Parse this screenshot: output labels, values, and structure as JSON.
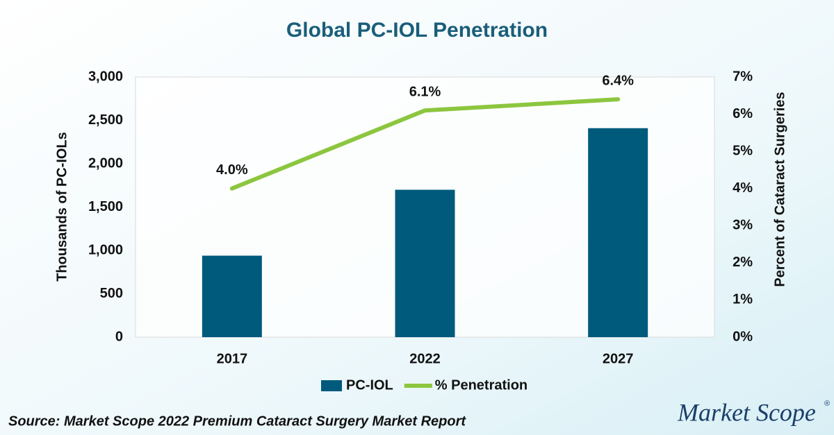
{
  "chart_data": {
    "type": "bar",
    "title": "Global PC-IOL Penetration",
    "y_label": "Thousands of PC-IOLs",
    "y2_label": "Percent of Cataract Surgeries",
    "categories": [
      "2017",
      "2022",
      "2027"
    ],
    "series": [
      {
        "name": "PC-IOL",
        "type": "bar",
        "color": "#005a7c",
        "values": [
          940,
          1700,
          2410
        ]
      },
      {
        "name": "% Penetration",
        "type": "line",
        "axis": "y2",
        "color": "#8cc63f",
        "values": [
          4.0,
          6.1,
          6.4
        ],
        "value_labels": [
          "4.0%",
          "6.1%",
          "6.4%"
        ]
      }
    ],
    "ylim": [
      0,
      3000
    ],
    "yticks": [
      0,
      500,
      {
        "value": 1000,
        "label": "1,000"
      },
      {
        "value": 1500,
        "label": "1,500"
      },
      {
        "value": 2000,
        "label": "2,000"
      },
      {
        "value": 2500,
        "label": "2,500"
      },
      {
        "value": 3000,
        "label": "3,000"
      }
    ],
    "y2lim": [
      0,
      7
    ],
    "y2ticks": [
      {
        "value": 0,
        "label": "0%"
      },
      {
        "value": 1,
        "label": "1%"
      },
      {
        "value": 2,
        "label": "2%"
      },
      {
        "value": 3,
        "label": "3%"
      },
      {
        "value": 4,
        "label": "4%"
      },
      {
        "value": 5,
        "label": "5%"
      },
      {
        "value": 6,
        "label": "6%"
      },
      {
        "value": 7,
        "label": "7%"
      }
    ],
    "legend": "bottom",
    "source": "Source: Market Scope 2022 Premium Cataract Surgery Market Report",
    "logo": "Market Scope",
    "logo_mark": "®"
  }
}
